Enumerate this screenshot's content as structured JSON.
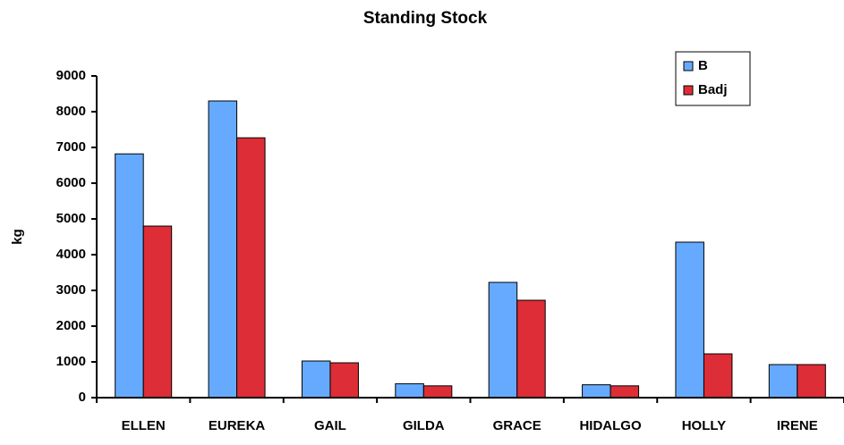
{
  "chart_data": {
    "type": "bar",
    "title": "Standing Stock",
    "ylabel": "kg",
    "categories": [
      "ELLEN",
      "EUREKA",
      "GAIL",
      "GILDA",
      "GRACE",
      "HIDALGO",
      "HOLLY",
      "IRENE"
    ],
    "series": [
      {
        "name": "B",
        "color": "#66aaff",
        "values": [
          6820,
          8300,
          1025,
          390,
          3225,
          360,
          4350,
          925
        ]
      },
      {
        "name": "Badj",
        "color": "#dd2d36",
        "values": [
          4800,
          7270,
          975,
          330,
          2725,
          330,
          1225,
          925
        ]
      }
    ],
    "ylim": [
      0,
      9000
    ],
    "yticks": [
      0,
      1000,
      2000,
      3000,
      4000,
      5000,
      6000,
      7000,
      8000,
      9000
    ],
    "legend": "top-right"
  }
}
